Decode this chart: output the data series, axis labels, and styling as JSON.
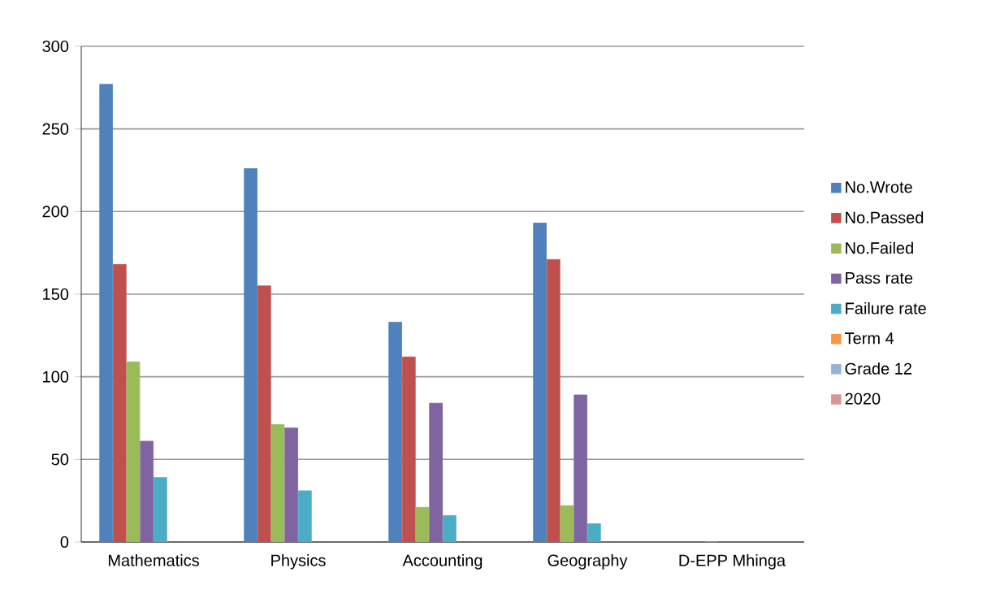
{
  "chart_data": {
    "type": "bar",
    "categories": [
      "Mathematics",
      "Physics",
      "Accounting",
      "Geography",
      "D-EPP Mhinga"
    ],
    "series": [
      {
        "name": "No.Wrote",
        "color": "#4f81bd",
        "values": [
          277,
          226,
          133,
          193,
          null
        ]
      },
      {
        "name": "No.Passed",
        "color": "#c0504d",
        "values": [
          168,
          155,
          112,
          171,
          null
        ]
      },
      {
        "name": "No.Failed",
        "color": "#9bbb59",
        "values": [
          109,
          71,
          21,
          22,
          0
        ]
      },
      {
        "name": "Pass rate",
        "color": "#8064a2",
        "values": [
          61,
          69,
          84,
          89,
          null
        ]
      },
      {
        "name": "Failure rate",
        "color": "#4bacc6",
        "values": [
          39,
          31,
          16,
          11,
          null
        ]
      },
      {
        "name": "Term 4",
        "color": "#f79646",
        "values": [
          null,
          null,
          null,
          null,
          null
        ]
      },
      {
        "name": "Grade 12",
        "color": "#95b3d7",
        "values": [
          null,
          null,
          null,
          null,
          null
        ]
      },
      {
        "name": "2020",
        "color": "#d99694",
        "values": [
          null,
          null,
          null,
          null,
          null
        ]
      }
    ],
    "ylim": [
      0,
      300
    ],
    "yticks": [
      0,
      50,
      100,
      150,
      200,
      250,
      300
    ],
    "grid": "y",
    "legend": "right"
  }
}
